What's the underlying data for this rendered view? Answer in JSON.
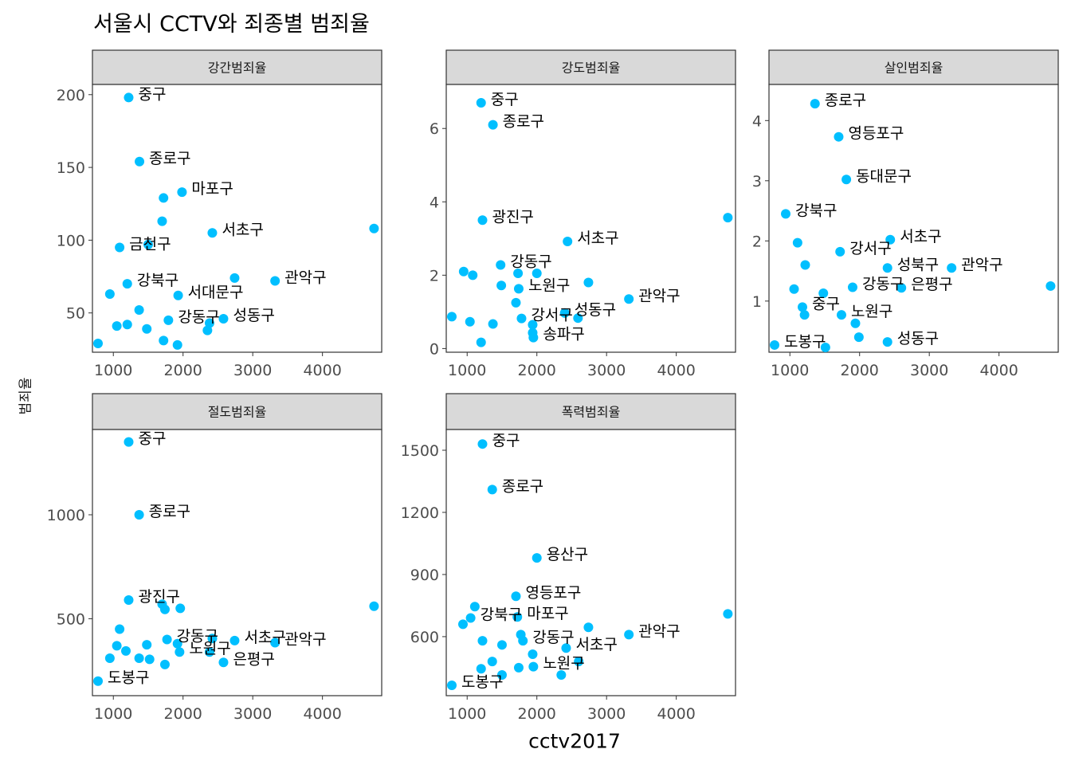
{
  "title": "서울시 CCTV와 죄종별 범죄율",
  "ylabel": "범죄율",
  "xlabel": "cctv2017",
  "colors": {
    "point": "#00BFFF",
    "strip": "#D9D9D9",
    "panel_border": "#333333",
    "tick": "#4D4D4D"
  },
  "chart_data": {
    "type": "scatter",
    "facet_scales": "free_y",
    "x_ticks": [
      1000,
      2000,
      3000,
      4000
    ],
    "xlim": [
      700,
      4850
    ],
    "grid": false,
    "panels": [
      {
        "name": "강간범죄율",
        "ylim": [
          23,
          207
        ],
        "y_ticks": [
          50,
          100,
          150,
          200
        ],
        "points": [
          {
            "x": 1220,
            "y": 198,
            "label": "중구"
          },
          {
            "x": 1375,
            "y": 154,
            "label": "종로구"
          },
          {
            "x": 1985,
            "y": 133,
            "label": "마포구"
          },
          {
            "x": 1720,
            "y": 129
          },
          {
            "x": 1700,
            "y": 113
          },
          {
            "x": 2420,
            "y": 105,
            "label": "서초구"
          },
          {
            "x": 4740,
            "y": 108
          },
          {
            "x": 1090,
            "y": 95,
            "label": "금천구"
          },
          {
            "x": 1500,
            "y": 97
          },
          {
            "x": 2740,
            "y": 74
          },
          {
            "x": 3320,
            "y": 72,
            "label": "관악구"
          },
          {
            "x": 1200,
            "y": 70,
            "label": "강북구"
          },
          {
            "x": 950,
            "y": 63
          },
          {
            "x": 1930,
            "y": 62,
            "label": "서대문구"
          },
          {
            "x": 1370,
            "y": 52
          },
          {
            "x": 1790,
            "y": 45,
            "label": "강동구"
          },
          {
            "x": 2580,
            "y": 46,
            "label": "성동구"
          },
          {
            "x": 1050,
            "y": 41
          },
          {
            "x": 1200,
            "y": 42
          },
          {
            "x": 1480,
            "y": 39
          },
          {
            "x": 2350,
            "y": 38
          },
          {
            "x": 2380,
            "y": 43
          },
          {
            "x": 1720,
            "y": 31
          },
          {
            "x": 1920,
            "y": 28
          },
          {
            "x": 780,
            "y": 29
          }
        ]
      },
      {
        "name": "강도범죄율",
        "ylim": [
          -0.1,
          7.2
        ],
        "y_ticks": [
          0,
          2,
          4,
          6
        ],
        "points": [
          {
            "x": 1200,
            "y": 6.7,
            "label": "중구"
          },
          {
            "x": 1370,
            "y": 6.1,
            "label": "종로구"
          },
          {
            "x": 1220,
            "y": 3.5,
            "label": "광진구"
          },
          {
            "x": 4740,
            "y": 3.57
          },
          {
            "x": 2440,
            "y": 2.92,
            "label": "서초구"
          },
          {
            "x": 1480,
            "y": 2.28,
            "label": "강동구"
          },
          {
            "x": 950,
            "y": 2.1
          },
          {
            "x": 1080,
            "y": 2.0
          },
          {
            "x": 1730,
            "y": 2.05
          },
          {
            "x": 2000,
            "y": 2.05
          },
          {
            "x": 1490,
            "y": 1.72
          },
          {
            "x": 1740,
            "y": 1.63,
            "label": "노원구"
          },
          {
            "x": 2740,
            "y": 1.8
          },
          {
            "x": 1700,
            "y": 1.25
          },
          {
            "x": 3320,
            "y": 1.35,
            "label": "관악구"
          },
          {
            "x": 2400,
            "y": 0.97,
            "label": "성동구"
          },
          {
            "x": 2590,
            "y": 0.83
          },
          {
            "x": 780,
            "y": 0.87
          },
          {
            "x": 1040,
            "y": 0.73
          },
          {
            "x": 1370,
            "y": 0.67
          },
          {
            "x": 1780,
            "y": 0.82,
            "label": "강서구"
          },
          {
            "x": 1940,
            "y": 0.65
          },
          {
            "x": 1950,
            "y": 0.3,
            "label": "송파구"
          },
          {
            "x": 1200,
            "y": 0.17
          },
          {
            "x": 1940,
            "y": 0.43
          }
        ]
      },
      {
        "name": "살인범죄율",
        "ylim": [
          0.15,
          4.6
        ],
        "y_ticks": [
          1,
          2,
          3,
          4
        ],
        "points": [
          {
            "x": 1360,
            "y": 4.28,
            "label": "종로구"
          },
          {
            "x": 1700,
            "y": 3.73,
            "label": "영등포구"
          },
          {
            "x": 1810,
            "y": 3.02,
            "label": "동대문구"
          },
          {
            "x": 940,
            "y": 2.45,
            "label": "강북구"
          },
          {
            "x": 2440,
            "y": 2.02,
            "label": "서초구"
          },
          {
            "x": 1110,
            "y": 1.97
          },
          {
            "x": 1720,
            "y": 1.82,
            "label": "강서구"
          },
          {
            "x": 1220,
            "y": 1.6
          },
          {
            "x": 2400,
            "y": 1.55,
            "label": "성북구"
          },
          {
            "x": 3320,
            "y": 1.55,
            "label": "관악구"
          },
          {
            "x": 2600,
            "y": 1.22,
            "label": "은평구"
          },
          {
            "x": 1060,
            "y": 1.2
          },
          {
            "x": 1480,
            "y": 1.13
          },
          {
            "x": 1900,
            "y": 1.23,
            "label": "강동구"
          },
          {
            "x": 4740,
            "y": 1.25
          },
          {
            "x": 1180,
            "y": 0.9,
            "label": "중구"
          },
          {
            "x": 1210,
            "y": 0.77
          },
          {
            "x": 1740,
            "y": 0.77,
            "label": "노원구"
          },
          {
            "x": 1940,
            "y": 0.63
          },
          {
            "x": 1990,
            "y": 0.4
          },
          {
            "x": 2400,
            "y": 0.32,
            "label": "성동구"
          },
          {
            "x": 780,
            "y": 0.27,
            "label": "도봉구"
          },
          {
            "x": 1510,
            "y": 0.23
          }
        ]
      },
      {
        "name": "절도범죄율",
        "ylim": [
          130,
          1410
        ],
        "y_ticks": [
          500,
          1000
        ],
        "points": [
          {
            "x": 1220,
            "y": 1350,
            "label": "중구"
          },
          {
            "x": 1370,
            "y": 1000,
            "label": "종로구"
          },
          {
            "x": 1220,
            "y": 590,
            "label": "광진구"
          },
          {
            "x": 4740,
            "y": 560
          },
          {
            "x": 1700,
            "y": 570
          },
          {
            "x": 1740,
            "y": 545
          },
          {
            "x": 1960,
            "y": 550
          },
          {
            "x": 1090,
            "y": 450
          },
          {
            "x": 1770,
            "y": 400,
            "label": "강동구"
          },
          {
            "x": 2740,
            "y": 395,
            "label": "서초구"
          },
          {
            "x": 2420,
            "y": 405
          },
          {
            "x": 3320,
            "y": 385,
            "label": "관악구"
          },
          {
            "x": 1480,
            "y": 375
          },
          {
            "x": 1920,
            "y": 380
          },
          {
            "x": 1050,
            "y": 370
          },
          {
            "x": 1180,
            "y": 345
          },
          {
            "x": 1950,
            "y": 340,
            "label": "노원구"
          },
          {
            "x": 2380,
            "y": 340
          },
          {
            "x": 950,
            "y": 310
          },
          {
            "x": 1370,
            "y": 310
          },
          {
            "x": 1520,
            "y": 305
          },
          {
            "x": 2580,
            "y": 290,
            "label": "은평구"
          },
          {
            "x": 1740,
            "y": 280
          },
          {
            "x": 780,
            "y": 200,
            "label": "도봉구"
          }
        ]
      },
      {
        "name": "폭력범죄율",
        "ylim": [
          315,
          1600
        ],
        "y_ticks": [
          600,
          900,
          1200,
          1500
        ],
        "points": [
          {
            "x": 1220,
            "y": 1530,
            "label": "중구"
          },
          {
            "x": 1360,
            "y": 1310,
            "label": "종로구"
          },
          {
            "x": 2000,
            "y": 980,
            "label": "용산구"
          },
          {
            "x": 1700,
            "y": 795,
            "label": "영등포구"
          },
          {
            "x": 4740,
            "y": 710
          },
          {
            "x": 1110,
            "y": 745
          },
          {
            "x": 1050,
            "y": 690,
            "label": "강북구"
          },
          {
            "x": 1720,
            "y": 695,
            "label": "마포구"
          },
          {
            "x": 940,
            "y": 660
          },
          {
            "x": 2740,
            "y": 645
          },
          {
            "x": 3320,
            "y": 610,
            "label": "관악구"
          },
          {
            "x": 1770,
            "y": 610
          },
          {
            "x": 1220,
            "y": 580
          },
          {
            "x": 1500,
            "y": 560
          },
          {
            "x": 1800,
            "y": 580,
            "label": "강동구"
          },
          {
            "x": 2420,
            "y": 545,
            "label": "서초구"
          },
          {
            "x": 1940,
            "y": 515
          },
          {
            "x": 1360,
            "y": 480
          },
          {
            "x": 1950,
            "y": 455,
            "label": "노원구"
          },
          {
            "x": 2600,
            "y": 480
          },
          {
            "x": 1200,
            "y": 445
          },
          {
            "x": 1740,
            "y": 450
          },
          {
            "x": 1500,
            "y": 415
          },
          {
            "x": 2350,
            "y": 415
          },
          {
            "x": 780,
            "y": 365,
            "label": "도봉구"
          }
        ]
      }
    ]
  }
}
